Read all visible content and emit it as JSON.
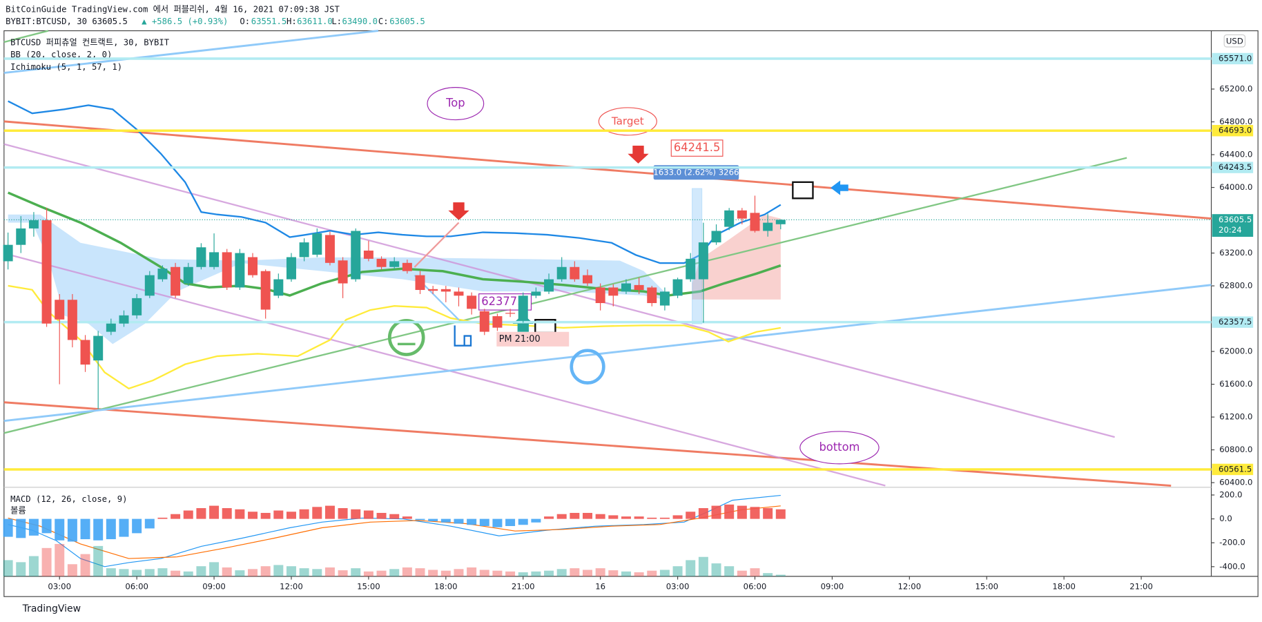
{
  "header": {
    "publisher": "BitCoinGuide TradingView.com 에서 퍼블리쉬, 4월 16, 2021 07:09:38 JST",
    "symbol": "BYBIT:BTCUSD, 30 63605.5",
    "change": "▲ +586.5 (+0.93%)",
    "o_label": "O:",
    "o": "63551.5",
    "h_label": "H:",
    "h": "63611.0",
    "l_label": "L:",
    "l": "63490.0",
    "c_label": "C:",
    "c": "63605.5"
  },
  "legend": {
    "symbol": "BTCUSD 퍼피츄얼 컨트랙트, 30, BYBIT",
    "bb": "BB (20, close, 2, 0)",
    "ichimoku": "Ichimoku (5, 1, 57, 1)",
    "macd": "MACD (12, 26, close, 9)",
    "volume": "볼륨",
    "currency": "USD"
  },
  "annotations": {
    "top": "Top",
    "target": "Target",
    "target_price": "64241.5",
    "measure": "1633.0 (2.62%) 3266",
    "low_price": "62377.5",
    "time_note": "PM 21:00",
    "bottom": "bottom"
  },
  "footer": "TradingView",
  "chart_data": {
    "type": "candlestick",
    "up_color": "#26a69a",
    "down_color": "#ef5350",
    "xlim": [
      -0.31,
      93.44
    ],
    "xticks": [
      {
        "value": 4,
        "label": "03:00"
      },
      {
        "value": 10,
        "label": "06:00"
      },
      {
        "value": 16,
        "label": "09:00"
      },
      {
        "value": 22,
        "label": "12:00"
      },
      {
        "value": 28,
        "label": "15:00"
      },
      {
        "value": 34,
        "label": "18:00"
      },
      {
        "value": 40,
        "label": "21:00"
      },
      {
        "value": 46,
        "label": "16"
      },
      {
        "value": 52,
        "label": "03:00"
      },
      {
        "value": 58,
        "label": "06:00"
      },
      {
        "value": 64,
        "label": "09:00"
      },
      {
        "value": 70,
        "label": "12:00"
      },
      {
        "value": 76,
        "label": "15:00"
      },
      {
        "value": 82,
        "label": "18:00"
      },
      {
        "value": 88,
        "label": "21:00"
      }
    ],
    "ylim": [
      60363,
      65911
    ],
    "yticks": [
      {
        "value": 65200,
        "label": "65200.0"
      },
      {
        "value": 64800,
        "label": "64800.0"
      },
      {
        "value": 64400,
        "label": "64400.0"
      },
      {
        "value": 64000,
        "label": "64000.0"
      },
      {
        "value": 63200,
        "label": "63200.0"
      },
      {
        "value": 62800,
        "label": "62800.0"
      },
      {
        "value": 62000,
        "label": "62000.0"
      },
      {
        "value": 61600,
        "label": "61600.0"
      },
      {
        "value": 61200,
        "label": "61200.0"
      },
      {
        "value": 60800,
        "label": "60800.0"
      },
      {
        "value": 60400,
        "label": "60400.0"
      }
    ],
    "price_tags": [
      {
        "value": 65571,
        "label": "65571.0",
        "color": "#b2ebf2"
      },
      {
        "value": 64693,
        "label": "64693.0",
        "color": "#ffeb3b"
      },
      {
        "value": 64243.5,
        "label": "64243.5",
        "color": "#b2ebf2"
      },
      {
        "value": 63605.5,
        "label": "63605.5",
        "color": "#26a69a",
        "countdown": "20:24"
      },
      {
        "value": 62357.5,
        "label": "62357.5",
        "color": "#b2ebf2"
      },
      {
        "value": 60561.5,
        "label": "60561.5",
        "color": "#ffeb3b"
      }
    ],
    "open": [
      63100,
      63300,
      63500,
      63600,
      62630,
      62630,
      62140,
      61890,
      62240,
      62340,
      62440,
      62680,
      62880,
      63030,
      62830,
      63030,
      63030,
      63210,
      62780,
      63150,
      62980,
      62680,
      62880,
      63150,
      63180,
      63420,
      63110,
      62880,
      63230,
      63130,
      63030,
      63080,
      62930,
      62760,
      62760,
      62730,
      62680,
      62490,
      62430,
      62470,
      62390,
      62680,
      62730,
      62880,
      63030,
      62930,
      62780,
      62780,
      62730,
      62810,
      62780,
      62560,
      62680,
      62880,
      62880,
      63330,
      63520,
      63720,
      63690,
      63470,
      63551.5
    ],
    "high": [
      63450,
      63650,
      63700,
      63750,
      62700,
      62700,
      62200,
      62250,
      62400,
      62500,
      62700,
      62980,
      63050,
      63080,
      63080,
      63320,
      63440,
      63250,
      63250,
      63200,
      63000,
      62950,
      63200,
      63380,
      63500,
      63460,
      63150,
      63500,
      63350,
      63160,
      63150,
      63120,
      62980,
      62800,
      62800,
      62780,
      62720,
      62520,
      62460,
      62520,
      62720,
      62780,
      62950,
      63150,
      63100,
      63000,
      62830,
      62820,
      62880,
      62900,
      62800,
      62780,
      62900,
      63200,
      63570,
      63550,
      63750,
      63750,
      63900,
      63680,
      63611
    ],
    "low": [
      63000,
      63200,
      63400,
      62300,
      61600,
      62050,
      61750,
      61300,
      62200,
      62300,
      62400,
      62650,
      62850,
      62650,
      62800,
      63000,
      63000,
      62750,
      62750,
      62900,
      62400,
      62650,
      62850,
      63100,
      63150,
      63050,
      62650,
      62850,
      63100,
      63000,
      63000,
      62950,
      62700,
      62700,
      62600,
      62550,
      62450,
      62200,
      62250,
      62420,
      62350,
      62650,
      62700,
      62850,
      62850,
      62800,
      62500,
      62550,
      62700,
      62700,
      62550,
      62500,
      62650,
      62850,
      62350,
      63300,
      63480,
      63550,
      63450,
      63400,
      63490
    ],
    "close": [
      63300,
      63500,
      63600,
      62340,
      62390,
      62140,
      61840,
      62190,
      62340,
      62440,
      62650,
      62930,
      63010,
      62680,
      63030,
      63270,
      63210,
      62780,
      63200,
      62930,
      62510,
      62880,
      63150,
      63330,
      63440,
      63080,
      62830,
      63470,
      63130,
      63030,
      63100,
      62980,
      62750,
      62740,
      62730,
      62680,
      62520,
      62240,
      62290,
      62460,
      62680,
      62730,
      62880,
      63030,
      62880,
      62830,
      62590,
      62680,
      62830,
      62750,
      62590,
      62730,
      62880,
      63130,
      63330,
      63470,
      63720,
      63620,
      63470,
      63570,
      63605.5
    ],
    "macd_ylim": [
      -481,
      244
    ],
    "macd_yticks": [
      {
        "value": 200,
        "label": "200.0"
      },
      {
        "value": 0,
        "label": "0.0"
      },
      {
        "value": -200,
        "label": "-200.0"
      },
      {
        "value": -400,
        "label": "-400.0"
      }
    ],
    "macd_hist": [
      -150,
      -160,
      -140,
      -120,
      -180,
      -190,
      -170,
      -180,
      -170,
      -150,
      -120,
      -80,
      10,
      40,
      70,
      90,
      110,
      90,
      80,
      60,
      50,
      70,
      60,
      80,
      100,
      110,
      90,
      80,
      70,
      50,
      40,
      20,
      -10,
      -20,
      -30,
      -40,
      -50,
      -60,
      -70,
      -60,
      -50,
      -30,
      20,
      40,
      50,
      50,
      40,
      30,
      20,
      20,
      10,
      10,
      30,
      60,
      90,
      110,
      120,
      110,
      100,
      90,
      80
    ],
    "volume": [
      40,
      35,
      50,
      70,
      80,
      30,
      55,
      75,
      20,
      18,
      16,
      18,
      20,
      14,
      12,
      25,
      35,
      22,
      15,
      18,
      25,
      28,
      25,
      20,
      18,
      22,
      15,
      20,
      12,
      14,
      18,
      22,
      20,
      16,
      14,
      18,
      22,
      16,
      14,
      12,
      10,
      12,
      14,
      18,
      20,
      16,
      20,
      15,
      12,
      10,
      14,
      16,
      25,
      40,
      48,
      32,
      25,
      14,
      20,
      8,
      4
    ]
  }
}
